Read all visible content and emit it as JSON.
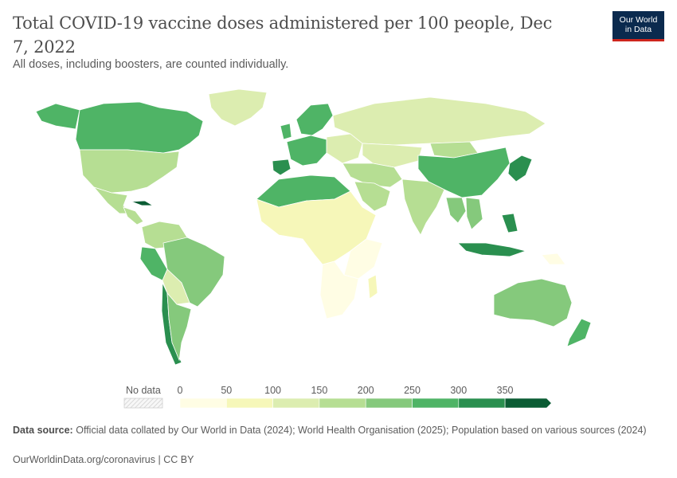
{
  "header": {
    "title": "Total COVID-19 vaccine doses administered per 100 people, Dec 7, 2022",
    "subtitle": "All doses, including boosters, are counted individually.",
    "logo_line1": "Our World",
    "logo_line2": "in Data"
  },
  "legend": {
    "no_data_label": "No data",
    "ticks": [
      "0",
      "50",
      "100",
      "150",
      "200",
      "250",
      "300",
      "350"
    ],
    "colors": [
      "#fffde4",
      "#f6f7b9",
      "#dcedb0",
      "#b6de93",
      "#85c97c",
      "#4fb466",
      "#2a8f4f",
      "#0b5c34"
    ]
  },
  "source": {
    "label": "Data source:",
    "text": "Official data collated by Our World in Data (2024); World Health Organisation (2025); Population based on various sources (2024)"
  },
  "footer": {
    "text": "OurWorldinData.org/coronavirus | CC BY"
  },
  "map_regions": [
    {
      "name": "Canada",
      "bin": 5
    },
    {
      "name": "United States",
      "bin": 3
    },
    {
      "name": "Mexico",
      "bin": 3
    },
    {
      "name": "Central America",
      "bin": 3
    },
    {
      "name": "Cuba",
      "bin": 7
    },
    {
      "name": "Greenland",
      "bin": 2
    },
    {
      "name": "Colombia / Venezuela",
      "bin": 3
    },
    {
      "name": "Brazil",
      "bin": 4
    },
    {
      "name": "Peru",
      "bin": 5
    },
    {
      "name": "Bolivia / Paraguay",
      "bin": 2
    },
    {
      "name": "Chile",
      "bin": 6
    },
    {
      "name": "Argentina",
      "bin": 4
    },
    {
      "name": "Western Europe",
      "bin": 5
    },
    {
      "name": "Iberia",
      "bin": 6
    },
    {
      "name": "Scandinavia",
      "bin": 5
    },
    {
      "name": "UK / Ireland",
      "bin": 5
    },
    {
      "name": "Eastern Europe",
      "bin": 2
    },
    {
      "name": "Russia",
      "bin": 2
    },
    {
      "name": "Kazakhstan / Central Asia",
      "bin": 2
    },
    {
      "name": "Mongolia",
      "bin": 3
    },
    {
      "name": "China",
      "bin": 5
    },
    {
      "name": "Japan / Korea",
      "bin": 6
    },
    {
      "name": "India",
      "bin": 3
    },
    {
      "name": "Middle East",
      "bin": 3
    },
    {
      "name": "Saudi Arabia / Gulf",
      "bin": 4
    },
    {
      "name": "Southeast Asia",
      "bin": 4
    },
    {
      "name": "Vietnam / Cambodia",
      "bin": 6
    },
    {
      "name": "Indonesia",
      "bin": 4
    },
    {
      "name": "Australia",
      "bin": 5
    },
    {
      "name": "New Zealand",
      "bin": 5
    },
    {
      "name": "North Africa",
      "bin": 1
    },
    {
      "name": "West / Central Africa",
      "bin": 0
    },
    {
      "name": "East Africa",
      "bin": 0
    },
    {
      "name": "Southern Africa",
      "bin": 1
    },
    {
      "name": "Madagascar",
      "bin": 1
    },
    {
      "name": "Papua New Guinea",
      "bin": 0
    }
  ]
}
